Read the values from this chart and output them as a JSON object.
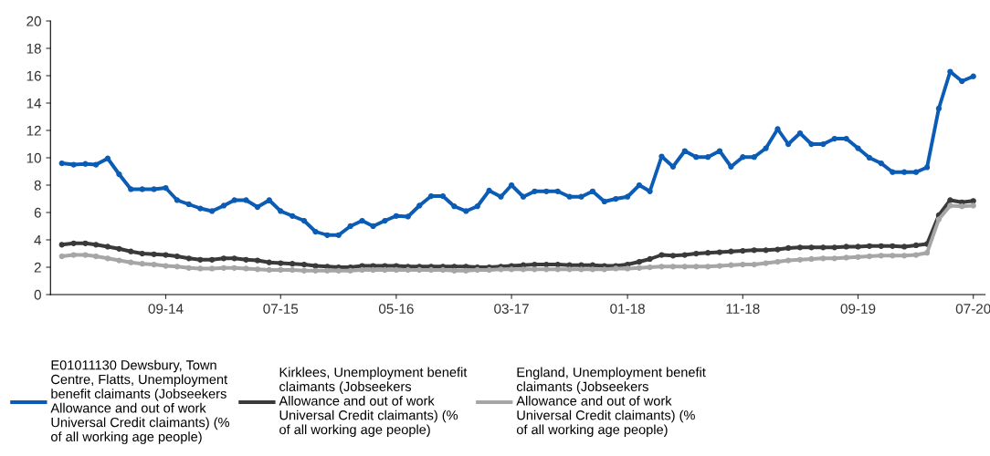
{
  "chart_data": {
    "type": "line",
    "x": [
      "2013-12",
      "2014-01",
      "2014-02",
      "2014-03",
      "2014-04",
      "2014-05",
      "2014-06",
      "2014-07",
      "2014-08",
      "2014-09",
      "2014-10",
      "2014-11",
      "2014-12",
      "2015-01",
      "2015-02",
      "2015-03",
      "2015-04",
      "2015-05",
      "2015-06",
      "2015-07",
      "2015-08",
      "2015-09",
      "2015-10",
      "2015-11",
      "2015-12",
      "2016-01",
      "2016-02",
      "2016-03",
      "2016-04",
      "2016-05",
      "2016-06",
      "2016-07",
      "2016-08",
      "2016-09",
      "2016-10",
      "2016-11",
      "2016-12",
      "2017-01",
      "2017-02",
      "2017-03",
      "2017-04",
      "2017-05",
      "2017-06",
      "2017-07",
      "2017-08",
      "2017-09",
      "2017-10",
      "2017-11",
      "2017-12",
      "2018-01",
      "2018-02",
      "2018-03",
      "2018-04",
      "2018-05",
      "2018-06",
      "2018-07",
      "2018-08",
      "2018-09",
      "2018-10",
      "2018-11",
      "2018-12",
      "2019-01",
      "2019-02",
      "2019-03",
      "2019-04",
      "2019-05",
      "2019-06",
      "2019-07",
      "2019-08",
      "2019-09",
      "2019-10",
      "2019-11",
      "2019-12",
      "2020-01",
      "2020-02",
      "2020-03",
      "2020-04",
      "2020-05",
      "2020-06",
      "2020-07"
    ],
    "series": [
      {
        "name": "E01011130 Dewsbury, Town Centre, Flatts, Unemployment benefit claimants (Jobseekers Allowance and out of work Universal Credit claimants) (% of all working age people)",
        "color": "#0b5cb5",
        "values": [
          9.6,
          9.5,
          9.55,
          9.5,
          9.95,
          8.8,
          7.7,
          7.7,
          7.7,
          7.8,
          6.9,
          6.6,
          6.3,
          6.1,
          6.5,
          6.9,
          6.9,
          6.4,
          6.9,
          6.1,
          5.75,
          5.4,
          4.6,
          4.35,
          4.35,
          5.0,
          5.4,
          5.0,
          5.4,
          5.75,
          5.7,
          6.5,
          7.2,
          7.2,
          6.45,
          6.1,
          6.45,
          7.6,
          7.15,
          8.0,
          7.15,
          7.55,
          7.55,
          7.55,
          7.15,
          7.15,
          7.55,
          6.8,
          7.0,
          7.15,
          8.0,
          7.55,
          10.1,
          9.35,
          10.5,
          10.05,
          10.05,
          10.5,
          9.35,
          10.05,
          10.05,
          10.7,
          12.1,
          11.0,
          11.8,
          11.0,
          11.0,
          11.4,
          11.4,
          10.7,
          10.0,
          9.6,
          8.95,
          8.95,
          8.95,
          9.3,
          13.6,
          16.3,
          15.6,
          15.95
        ]
      },
      {
        "name": "Kirklees, Unemployment benefit claimants (Jobseekers Allowance and out of work Universal Credit claimants) (% of all working age people)",
        "color": "#3a3a3a",
        "values": [
          3.65,
          3.75,
          3.75,
          3.65,
          3.5,
          3.35,
          3.15,
          3.0,
          2.95,
          2.9,
          2.8,
          2.65,
          2.55,
          2.55,
          2.65,
          2.65,
          2.55,
          2.5,
          2.35,
          2.3,
          2.25,
          2.2,
          2.1,
          2.05,
          2.0,
          2.0,
          2.1,
          2.1,
          2.1,
          2.1,
          2.05,
          2.05,
          2.05,
          2.05,
          2.05,
          2.05,
          2.0,
          2.0,
          2.05,
          2.1,
          2.15,
          2.2,
          2.2,
          2.2,
          2.15,
          2.15,
          2.15,
          2.1,
          2.1,
          2.2,
          2.4,
          2.6,
          2.9,
          2.85,
          2.9,
          3.0,
          3.05,
          3.1,
          3.15,
          3.2,
          3.25,
          3.25,
          3.3,
          3.4,
          3.45,
          3.45,
          3.45,
          3.45,
          3.5,
          3.5,
          3.55,
          3.55,
          3.55,
          3.5,
          3.6,
          3.7,
          5.8,
          6.9,
          6.75,
          6.85
        ]
      },
      {
        "name": "England, Unemployment benefit claimants (Jobseekers Allowance and out of work Universal Credit claimants) (% of all working age people)",
        "color": "#a6a6a6",
        "values": [
          2.8,
          2.9,
          2.9,
          2.8,
          2.65,
          2.5,
          2.35,
          2.25,
          2.2,
          2.1,
          2.05,
          1.95,
          1.9,
          1.9,
          1.95,
          1.95,
          1.9,
          1.85,
          1.8,
          1.8,
          1.8,
          1.75,
          1.75,
          1.75,
          1.75,
          1.75,
          1.8,
          1.8,
          1.8,
          1.8,
          1.8,
          1.8,
          1.8,
          1.8,
          1.75,
          1.75,
          1.8,
          1.8,
          1.85,
          1.85,
          1.85,
          1.85,
          1.85,
          1.85,
          1.85,
          1.85,
          1.85,
          1.85,
          1.9,
          1.9,
          1.95,
          2.0,
          2.05,
          2.05,
          2.05,
          2.05,
          2.05,
          2.1,
          2.15,
          2.2,
          2.2,
          2.3,
          2.4,
          2.5,
          2.55,
          2.6,
          2.65,
          2.65,
          2.7,
          2.75,
          2.8,
          2.85,
          2.85,
          2.85,
          2.9,
          3.05,
          5.5,
          6.5,
          6.45,
          6.5
        ]
      }
    ],
    "xlim": [
      "2013-11",
      "2020-08"
    ],
    "xticks": [
      {
        "value": "2014-09",
        "label": "09-14"
      },
      {
        "value": "2015-07",
        "label": "07-15"
      },
      {
        "value": "2016-05",
        "label": "05-16"
      },
      {
        "value": "2017-03",
        "label": "03-17"
      },
      {
        "value": "2018-01",
        "label": "01-18"
      },
      {
        "value": "2018-11",
        "label": "11-18"
      },
      {
        "value": "2019-09",
        "label": "09-19"
      },
      {
        "value": "2020-07",
        "label": "07-20"
      }
    ],
    "ylim": [
      0,
      20
    ],
    "yticks": [
      0,
      2,
      4,
      6,
      8,
      10,
      12,
      14,
      16,
      18,
      20
    ],
    "grid": false,
    "legend": "bottom",
    "marker": "circle",
    "line_style": "solid"
  }
}
